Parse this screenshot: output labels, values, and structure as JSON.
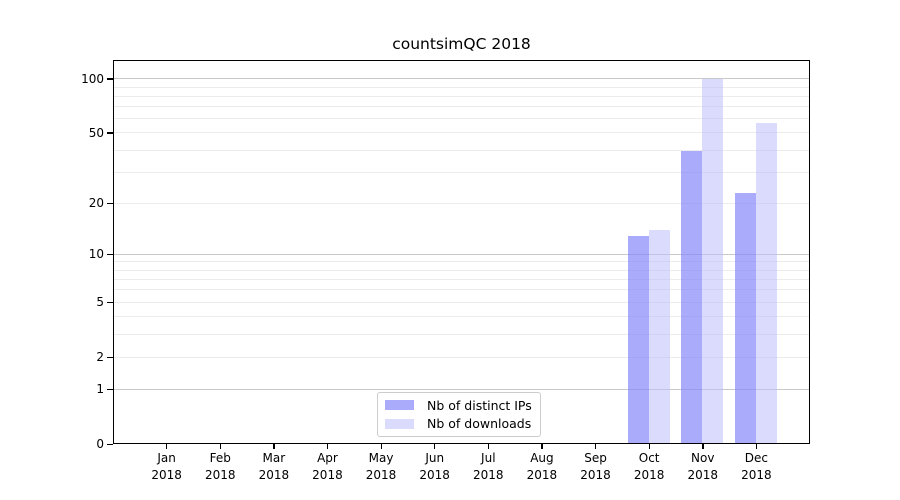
{
  "title": "countsimQC 2018",
  "chart_data": {
    "type": "bar",
    "title": "countsimQC 2018",
    "categories": [
      "Jan 2018",
      "Feb 2018",
      "Mar 2018",
      "Apr 2018",
      "May 2018",
      "Jun 2018",
      "Jul 2018",
      "Aug 2018",
      "Sep 2018",
      "Oct 2018",
      "Nov 2018",
      "Dec 2018"
    ],
    "series": [
      {
        "name": "Nb of distinct IPs",
        "color_hex": "#aaaafa",
        "fill": "rgba(136,136,250,0.7)",
        "values": [
          0,
          0,
          0,
          0,
          0,
          0,
          0,
          0,
          0,
          13,
          40,
          23
        ]
      },
      {
        "name": "Nb of downloads",
        "color_hex": "#dbdbfc",
        "fill": "rgba(190,190,252,0.55)",
        "values": [
          0,
          0,
          0,
          0,
          0,
          0,
          0,
          0,
          0,
          14,
          100,
          57
        ]
      }
    ],
    "xlabel": "",
    "ylabel": "",
    "y_scale": "log10(1+v)",
    "ylim": [
      0,
      127
    ],
    "y_ticks": [
      0,
      1,
      2,
      5,
      10,
      20,
      50,
      100
    ],
    "y_minor_grid": [
      2,
      3,
      4,
      5,
      6,
      7,
      8,
      9,
      20,
      30,
      40,
      50,
      60,
      70,
      80,
      90
    ],
    "y_major_grid": [
      1,
      10,
      100
    ],
    "grid": "on",
    "legend_position": "bottom-center"
  },
  "colors": {
    "background": "#ffffff",
    "spine": "#000000",
    "grid_minor": "#ececec",
    "grid_major": "#c9c9c9",
    "legend_border": "#cccccc"
  }
}
